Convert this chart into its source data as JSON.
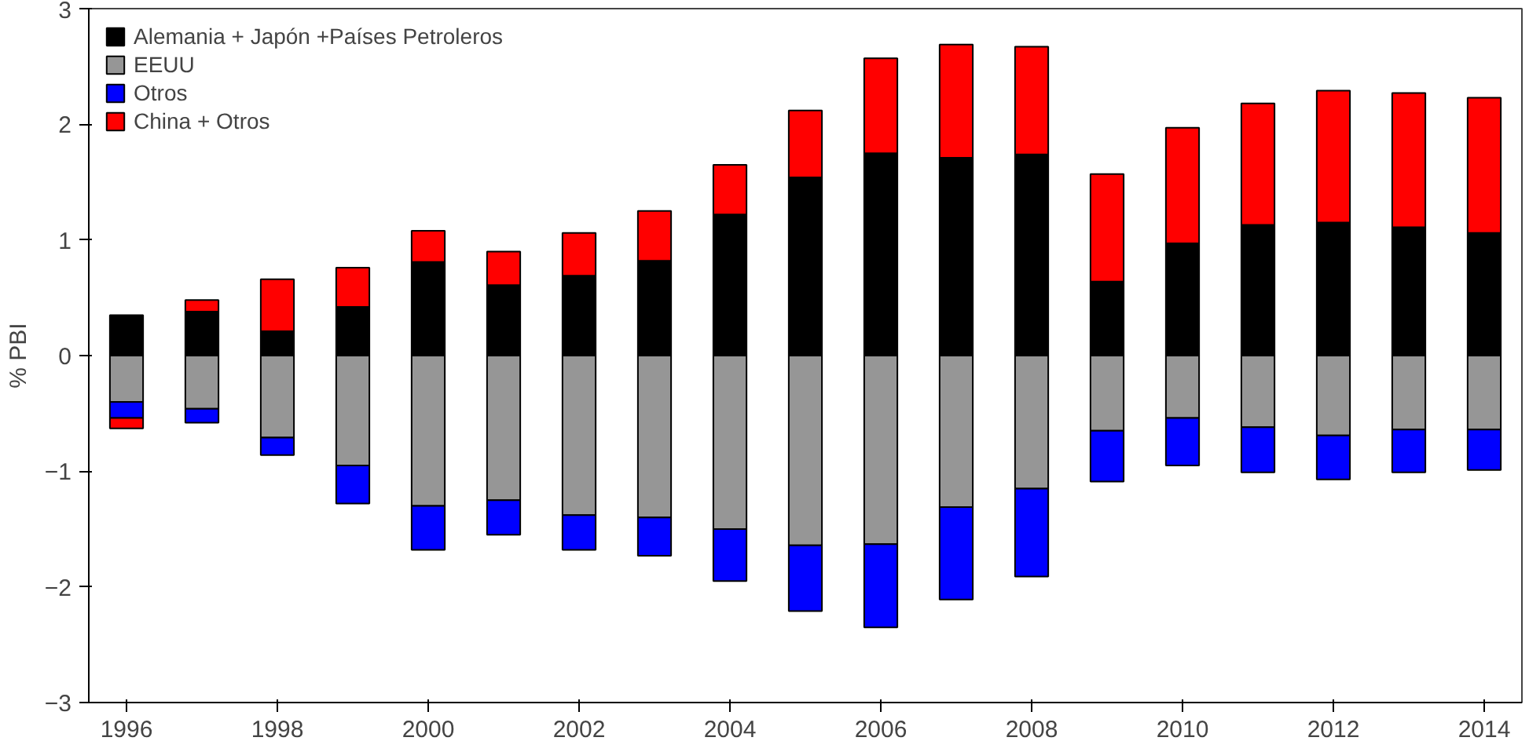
{
  "chart_data": {
    "type": "bar",
    "stacked": true,
    "ylabel": "% PBI",
    "categories": [
      "1996",
      null,
      "1998",
      null,
      "2000",
      null,
      "2002",
      null,
      "2004",
      null,
      "2006",
      null,
      "2008",
      null,
      "2010",
      null,
      "2012",
      null,
      "2014"
    ],
    "ylim": [
      -3,
      3
    ],
    "yticks": [
      -3,
      -2,
      -1,
      0,
      1,
      2,
      3
    ],
    "grid": false,
    "legend": "top left",
    "series": [
      {
        "name": "Alemania + Japón +Países Petroleros",
        "color": "#000000",
        "values": [
          0.35,
          0.38,
          0.21,
          0.42,
          0.81,
          0.61,
          0.69,
          0.82,
          1.22,
          1.54,
          1.75,
          1.71,
          1.74,
          0.64,
          0.97,
          1.13,
          1.15,
          1.11,
          1.06
        ]
      },
      {
        "name": "EEUU",
        "color": "#969696",
        "values": [
          -0.4,
          -0.46,
          -0.71,
          -0.95,
          -1.3,
          -1.25,
          -1.38,
          -1.4,
          -1.5,
          -1.64,
          -1.63,
          -1.31,
          -1.15,
          -0.65,
          -0.54,
          -0.62,
          -0.69,
          -0.64,
          -0.64
        ]
      },
      {
        "name": "Otros",
        "color": "#0000ff",
        "values": [
          -0.14,
          -0.12,
          -0.15,
          -0.33,
          -0.38,
          -0.3,
          -0.3,
          -0.33,
          -0.45,
          -0.57,
          -0.72,
          -0.8,
          -0.76,
          -0.44,
          -0.41,
          -0.39,
          -0.38,
          -0.37,
          -0.35
        ]
      },
      {
        "name": "China + Otros",
        "color": "#ff0000",
        "values": [
          -0.09,
          0.1,
          0.45,
          0.34,
          0.27,
          0.29,
          0.37,
          0.43,
          0.43,
          0.58,
          0.82,
          0.98,
          0.93,
          0.93,
          1.0,
          1.05,
          1.14,
          1.16,
          1.17
        ]
      }
    ]
  }
}
